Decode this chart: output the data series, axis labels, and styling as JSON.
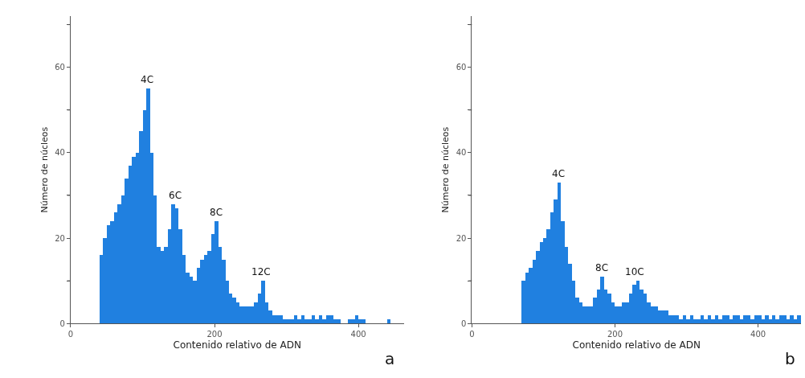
{
  "chart_data": [
    {
      "type": "histogram",
      "xlabel": "Contenido relativo de ADN",
      "ylabel": "Número de núcleos",
      "color": "#2080e0",
      "bins": [
        40,
        45,
        50,
        55,
        60,
        65,
        70,
        75,
        80,
        85,
        90,
        95,
        100,
        105,
        110,
        115,
        120,
        125,
        130,
        135,
        140,
        145,
        150,
        155,
        160,
        165,
        170,
        175,
        180,
        185,
        190,
        195,
        200,
        205,
        210,
        215,
        220,
        225,
        230,
        235,
        240,
        245,
        250,
        255,
        260,
        265,
        270,
        275,
        280,
        285,
        290,
        295,
        300,
        305,
        310,
        315,
        320,
        325,
        330,
        335,
        340,
        345,
        350,
        355,
        360,
        365,
        370,
        375,
        380,
        385,
        390,
        395,
        400,
        405,
        410,
        415,
        420,
        425,
        430,
        435,
        440,
        445,
        450
      ],
      "values": [
        16,
        20,
        23,
        24,
        26,
        28,
        30,
        34,
        37,
        39,
        40,
        45,
        50,
        55,
        40,
        30,
        18,
        17,
        18,
        22,
        28,
        27,
        22,
        16,
        12,
        11,
        10,
        13,
        15,
        16,
        17,
        21,
        24,
        18,
        15,
        10,
        7,
        6,
        5,
        4,
        4,
        4,
        4,
        5,
        7,
        10,
        5,
        3,
        2,
        2,
        2,
        1,
        1,
        1,
        2,
        1,
        2,
        1,
        1,
        2,
        1,
        2,
        1,
        2,
        2,
        1,
        1,
        0,
        0,
        1,
        1,
        2,
        1,
        1,
        0,
        0,
        0,
        0,
        0,
        0,
        1,
        0
      ],
      "xlim": [
        0,
        463
      ],
      "ylim": [
        0,
        72
      ],
      "xticks": [
        0,
        200,
        400
      ],
      "yticks": [
        0,
        {
          "value": 10,
          "label": null
        },
        20,
        {
          "value": 30,
          "label": null
        },
        40,
        {
          "value": 50,
          "label": null
        },
        60,
        {
          "value": 70,
          "label": null
        }
      ],
      "annotations": [
        {
          "text": "4C",
          "x": 106,
          "y": 55
        },
        {
          "text": "6C",
          "x": 145,
          "y": 28
        },
        {
          "text": "8C",
          "x": 202,
          "y": 24
        },
        {
          "text": "12C",
          "x": 265,
          "y": 10
        },
        "a"
      ]
    },
    {
      "type": "histogram",
      "xlabel": "Contenido relativo de ADN",
      "ylabel": "Número de núcleos",
      "color": "#2080e0",
      "bins": [
        70,
        75,
        80,
        85,
        90,
        95,
        100,
        105,
        110,
        115,
        120,
        125,
        130,
        135,
        140,
        145,
        150,
        155,
        160,
        165,
        170,
        175,
        180,
        185,
        190,
        195,
        200,
        205,
        210,
        215,
        220,
        225,
        230,
        235,
        240,
        245,
        250,
        255,
        260,
        265,
        270,
        275,
        280,
        285,
        290,
        295,
        300,
        305,
        310,
        315,
        320,
        325,
        330,
        335,
        340,
        345,
        350,
        355,
        360,
        365,
        370,
        375,
        380,
        385,
        390,
        395,
        400,
        405,
        410,
        415,
        420,
        425,
        430,
        435,
        440,
        445,
        450,
        455,
        460
      ],
      "values": [
        10,
        12,
        13,
        15,
        17,
        19,
        20,
        22,
        26,
        29,
        33,
        24,
        18,
        14,
        10,
        6,
        5,
        4,
        4,
        4,
        6,
        8,
        11,
        8,
        7,
        5,
        4,
        4,
        5,
        5,
        7,
        9,
        10,
        8,
        7,
        5,
        4,
        4,
        3,
        3,
        3,
        2,
        2,
        2,
        1,
        2,
        1,
        2,
        1,
        1,
        2,
        1,
        2,
        1,
        2,
        1,
        2,
        2,
        1,
        2,
        2,
        1,
        2,
        2,
        1,
        2,
        2,
        1,
        2,
        1,
        2,
        1,
        2,
        2,
        1,
        2,
        1,
        2
      ],
      "xlim": [
        0,
        460
      ],
      "ylim": [
        0,
        72
      ],
      "xticks": [
        0,
        200,
        400
      ],
      "yticks": [
        0,
        {
          "value": 10,
          "label": null
        },
        20,
        {
          "value": 30,
          "label": null
        },
        40,
        {
          "value": 50,
          "label": null
        },
        60,
        {
          "value": 70,
          "label": null
        }
      ],
      "annotations": [
        {
          "text": "4C",
          "x": 121,
          "y": 33
        },
        {
          "text": "8C",
          "x": 182,
          "y": 11
        },
        {
          "text": "10C",
          "x": 228,
          "y": 10
        },
        "b"
      ]
    }
  ]
}
